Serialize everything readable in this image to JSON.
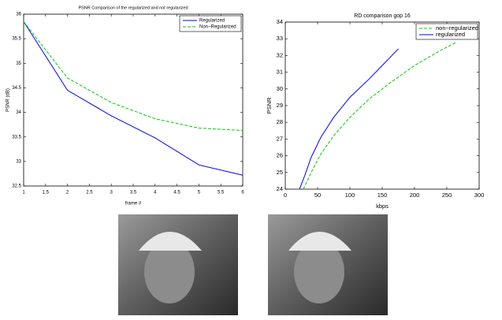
{
  "chart_data": [
    {
      "type": "line",
      "title": "PSNR Comparison of the regularized and not regularized",
      "x_label": "frame #",
      "y_label": "PSNR (dB)",
      "x": [
        1,
        2,
        3,
        4,
        5,
        6
      ],
      "series": [
        {
          "name": "Regularized",
          "color": "#0000ff",
          "dash": false,
          "values": [
            35.85,
            34.45,
            33.93,
            33.48,
            32.93,
            32.72
          ]
        },
        {
          "name": "Non−Regularized",
          "color": "#00cc00",
          "dash": true,
          "values": [
            35.85,
            34.7,
            34.2,
            33.87,
            33.68,
            33.63
          ]
        }
      ],
      "xlim": [
        1,
        6
      ],
      "xticks": [
        1,
        1.5,
        2,
        2.5,
        3,
        3.5,
        4,
        4.5,
        5,
        5.5,
        6
      ],
      "ylim": [
        32.5,
        36
      ],
      "yticks": [
        32.5,
        33,
        33.5,
        34,
        34.5,
        35,
        35.5,
        36
      ],
      "grid": false,
      "legend": "upper right"
    },
    {
      "type": "line",
      "title": "RD comparison gop 16",
      "x_label": "kbps",
      "y_label": "PSNR",
      "series": [
        {
          "name": "non−regularized",
          "color": "#00cc00",
          "dash": true,
          "x": [
            28,
            40,
            55,
            75,
            100,
            130,
            160,
            200,
            240,
            265
          ],
          "values": [
            24,
            25,
            26.1,
            27.2,
            28.3,
            29.4,
            30.3,
            31.4,
            32.3,
            32.8
          ]
        },
        {
          "name": "regularized",
          "color": "#0000ff",
          "dash": false,
          "x": [
            22,
            30,
            40,
            55,
            75,
            100,
            130,
            150,
            175
          ],
          "values": [
            24,
            24.8,
            25.9,
            27.1,
            28.3,
            29.5,
            30.6,
            31.4,
            32.4
          ]
        }
      ],
      "xlim": [
        0,
        300
      ],
      "xticks": [
        0,
        50,
        100,
        150,
        200,
        250,
        300
      ],
      "ylim": [
        24,
        34
      ],
      "yticks": [
        24,
        25,
        26,
        27,
        28,
        29,
        30,
        31,
        32,
        33,
        34
      ],
      "grid": false,
      "legend": "upper right"
    }
  ]
}
